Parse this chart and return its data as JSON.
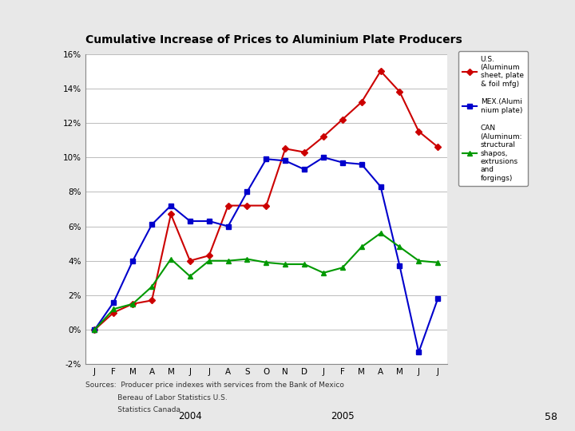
{
  "title": "Cumulative Increase of Prices to Aluminium Plate Producers",
  "x_labels": [
    "J",
    "F",
    "M",
    "A",
    "M",
    "J",
    "J",
    "A",
    "S",
    "O",
    "N",
    "D",
    "J",
    "F",
    "M",
    "A",
    "M",
    "J",
    "J"
  ],
  "year_labels": [
    [
      "2004",
      5
    ],
    [
      "2005",
      13
    ]
  ],
  "us_data": [
    0.0,
    1.0,
    1.5,
    1.7,
    6.7,
    4.0,
    4.3,
    7.2,
    7.2,
    7.2,
    10.5,
    10.3,
    11.2,
    12.2,
    13.2,
    15.0,
    13.8,
    11.5,
    10.6
  ],
  "mex_data": [
    0.0,
    1.6,
    4.0,
    6.1,
    7.2,
    6.3,
    6.3,
    6.0,
    8.0,
    9.9,
    9.8,
    9.3,
    10.0,
    9.7,
    9.6,
    8.3,
    3.7,
    -1.3,
    1.8
  ],
  "can_data": [
    0.0,
    1.2,
    1.5,
    2.5,
    4.1,
    3.1,
    4.0,
    4.0,
    4.1,
    3.9,
    3.8,
    3.8,
    3.3,
    3.6,
    4.8,
    5.6,
    4.8,
    4.0,
    3.9
  ],
  "us_color": "#cc0000",
  "mex_color": "#0000cc",
  "can_color": "#009900",
  "ylim": [
    -2,
    16
  ],
  "yticks": [
    -2,
    0,
    2,
    4,
    6,
    8,
    10,
    12,
    14,
    16
  ],
  "sources_line1": "Sources:  Producer price indexes with services from the Bank of Mexico",
  "sources_line2": "              Bereau of Labor Statistics U.S.",
  "sources_line3": "              Statistics Canada",
  "legend_us": "U.S.\n(Aluminum\nsheet, plate\n& foil mfg)",
  "legend_mex": "MEX.(Alumi\nnium plate)",
  "legend_can": "CAN\n(Aluminum:\nstructural\nshapos,\nextrusions\nand\nforgings)",
  "slide_bg": "#e8e8e8",
  "left_bar_color": "#cc2222",
  "plot_bg_color": "#ffffff",
  "page_num": "58"
}
